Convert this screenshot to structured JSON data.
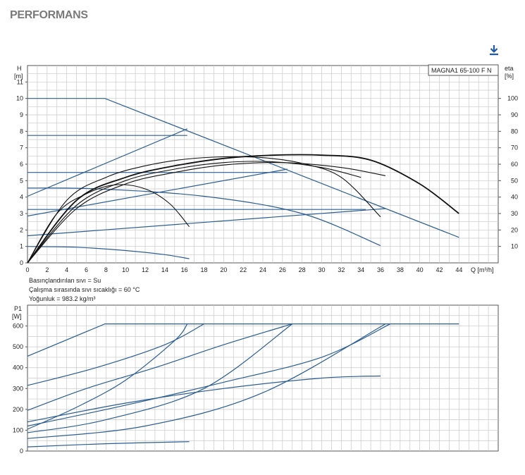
{
  "page": {
    "title": "PERFORMANS"
  },
  "colors": {
    "curve_blue": "#2a5d93",
    "curve_black": "#111111",
    "grid": "#c8c8c8",
    "title_grey": "#7a7a7a",
    "download_blue": "#1f5aa6"
  },
  "icons": {
    "download": "download-icon"
  },
  "chart_data": [
    {
      "type": "line",
      "title": "MAGNA1 65-100 F N",
      "ylabel_top": "H",
      "ylabel_unit": "[m]",
      "y2label_top": "eta",
      "y2label_unit": "[%]",
      "xlabel": "Q [m³/h]",
      "xlim": [
        0,
        48
      ],
      "ylim": [
        0,
        12
      ],
      "y2lim": [
        0,
        120
      ],
      "x_ticks": [
        0,
        2,
        4,
        6,
        8,
        10,
        12,
        14,
        16,
        18,
        20,
        22,
        24,
        26,
        28,
        30,
        32,
        34,
        36,
        38,
        40,
        42,
        44
      ],
      "y_ticks": [
        0,
        1,
        2,
        3,
        4,
        5,
        6,
        7,
        8,
        9,
        10,
        11
      ],
      "y2_ticks": [
        10,
        20,
        30,
        40,
        50,
        60,
        70,
        80,
        90,
        100
      ],
      "grid": true,
      "notes": [
        "Basınçlandırılan sıvı = Su",
        "Çalışma sırasında sıvı sıcaklığı = 60 °C",
        "Yoğunluk = 983.2 kg/m³"
      ],
      "series": [
        {
          "kind": "head",
          "x": [
            0,
            7.9,
            44
          ],
          "y": [
            10,
            10,
            1.55
          ]
        },
        {
          "kind": "head",
          "x": [
            0,
            16.3
          ],
          "y": [
            7.75,
            7.75
          ]
        },
        {
          "kind": "head",
          "x": [
            0,
            26.5
          ],
          "y": [
            5.5,
            5.5
          ]
        },
        {
          "kind": "head",
          "x": [
            0,
            34.5
          ],
          "y": [
            3.25,
            3.25
          ]
        },
        {
          "kind": "head",
          "x": [
            0,
            7,
            18,
            28,
            36
          ],
          "y": [
            4.55,
            4.5,
            4.05,
            3.0,
            1.05
          ]
        },
        {
          "kind": "head",
          "x": [
            0,
            5,
            10,
            14,
            16.5
          ],
          "y": [
            1.0,
            0.95,
            0.75,
            0.5,
            0.25
          ]
        },
        {
          "kind": "head",
          "x": [
            0,
            16.3
          ],
          "y": [
            4.05,
            8.15
          ]
        },
        {
          "kind": "head",
          "x": [
            0,
            26.5
          ],
          "y": [
            2.85,
            5.7
          ]
        },
        {
          "kind": "head",
          "x": [
            0,
            36.5
          ],
          "y": [
            1.65,
            3.3
          ]
        },
        {
          "kind": "eta",
          "x": [
            0,
            5,
            10,
            15,
            20,
            25,
            30,
            35,
            40,
            44
          ],
          "y": [
            0,
            38,
            52,
            59,
            63.5,
            65.5,
            65.5,
            62.5,
            48,
            30
          ]
        },
        {
          "kind": "eta",
          "x": [
            0,
            4,
            8,
            12,
            16,
            20,
            24,
            28,
            32,
            36
          ],
          "y": [
            0,
            38,
            52,
            59,
            63,
            64.5,
            64,
            60.5,
            52,
            28
          ]
        },
        {
          "kind": "eta",
          "x": [
            0,
            3,
            6,
            9,
            12,
            14.5,
            16.5
          ],
          "y": [
            0,
            30,
            42,
            47.5,
            45,
            36,
            22
          ]
        },
        {
          "kind": "eta",
          "x": [
            0,
            5,
            10,
            15,
            20,
            26,
            32,
            36.5
          ],
          "y": [
            0,
            33,
            48,
            55,
            59.5,
            61,
            58,
            53
          ]
        },
        {
          "kind": "eta",
          "x": [
            0,
            5,
            10,
            15,
            20,
            25,
            30,
            34
          ],
          "y": [
            0,
            35,
            50,
            57,
            61,
            61.5,
            58,
            52
          ]
        }
      ]
    },
    {
      "type": "line",
      "ylabel_top": "P1",
      "ylabel_unit": "[W]",
      "xlim": [
        0,
        48
      ],
      "ylim": [
        0,
        700
      ],
      "y_ticks": [
        0,
        100,
        200,
        300,
        400,
        500,
        600
      ],
      "grid": true,
      "series": [
        {
          "x": [
            0,
            7.9,
            44
          ],
          "y": [
            455,
            610,
            610
          ]
        },
        {
          "x": [
            0,
            7,
            14,
            18
          ],
          "y": [
            315,
            400,
            510,
            610
          ]
        },
        {
          "x": [
            0,
            5,
            10,
            15,
            16.3
          ],
          "y": [
            105,
            210,
            340,
            530,
            610
          ]
        },
        {
          "x": [
            0,
            6,
            13,
            20,
            27
          ],
          "y": [
            195,
            300,
            400,
            510,
            610
          ]
        },
        {
          "x": [
            0,
            8,
            18,
            27
          ],
          "y": [
            88,
            150,
            300,
            610
          ]
        },
        {
          "x": [
            0,
            10,
            20,
            30,
            37
          ],
          "y": [
            120,
            220,
            330,
            450,
            610
          ]
        },
        {
          "x": [
            0,
            12,
            24,
            36.5
          ],
          "y": [
            60,
            120,
            280,
            610
          ]
        },
        {
          "x": [
            0,
            10,
            20,
            30,
            36
          ],
          "y": [
            140,
            230,
            300,
            350,
            360
          ]
        },
        {
          "x": [
            0,
            8,
            16.5
          ],
          "y": [
            20,
            35,
            45
          ]
        }
      ]
    }
  ]
}
